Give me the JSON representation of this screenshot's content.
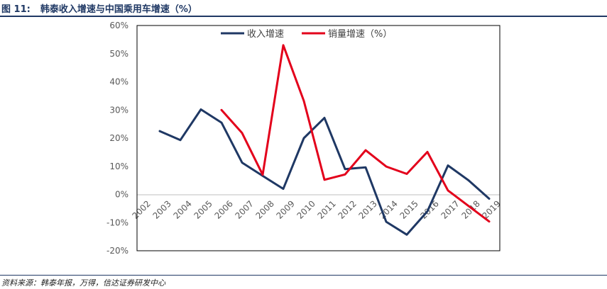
{
  "figure": {
    "label": "图 11:",
    "title": "韩泰收入增速与中国乘用车增速（%）"
  },
  "source": "资料来源：韩泰年报，万得，信达证券研发中心",
  "chart_data": {
    "type": "line",
    "x": [
      "2002",
      "2003",
      "2004",
      "2005",
      "2006",
      "2007",
      "2008",
      "2009",
      "2010",
      "2011",
      "2012",
      "2013",
      "2014",
      "2015",
      "2016",
      "2017",
      "2018",
      "2019"
    ],
    "ylim": [
      -20,
      60
    ],
    "yticks": [
      -20,
      -10,
      0,
      10,
      20,
      30,
      40,
      50,
      60
    ],
    "ytick_labels": [
      "-20%",
      "-10%",
      "0%",
      "10%",
      "20%",
      "30%",
      "40%",
      "50%",
      "60%"
    ],
    "legend_position": "top",
    "grid": false,
    "series": [
      {
        "name": "收入增速",
        "color": "#1f3864",
        "values": [
          null,
          22.5,
          19.3,
          30.2,
          25.5,
          11.3,
          6.6,
          2.0,
          20.0,
          27.2,
          9.0,
          9.6,
          -9.7,
          -14.3,
          -6.0,
          10.3,
          5.0,
          -1.5
        ]
      },
      {
        "name": "销量增速（%）",
        "color": "#e3001b",
        "values": [
          null,
          null,
          null,
          null,
          30.0,
          21.8,
          7.0,
          53.0,
          33.2,
          5.2,
          7.1,
          15.7,
          9.9,
          7.3,
          15.1,
          1.4,
          -4.1,
          -9.6
        ]
      }
    ]
  }
}
